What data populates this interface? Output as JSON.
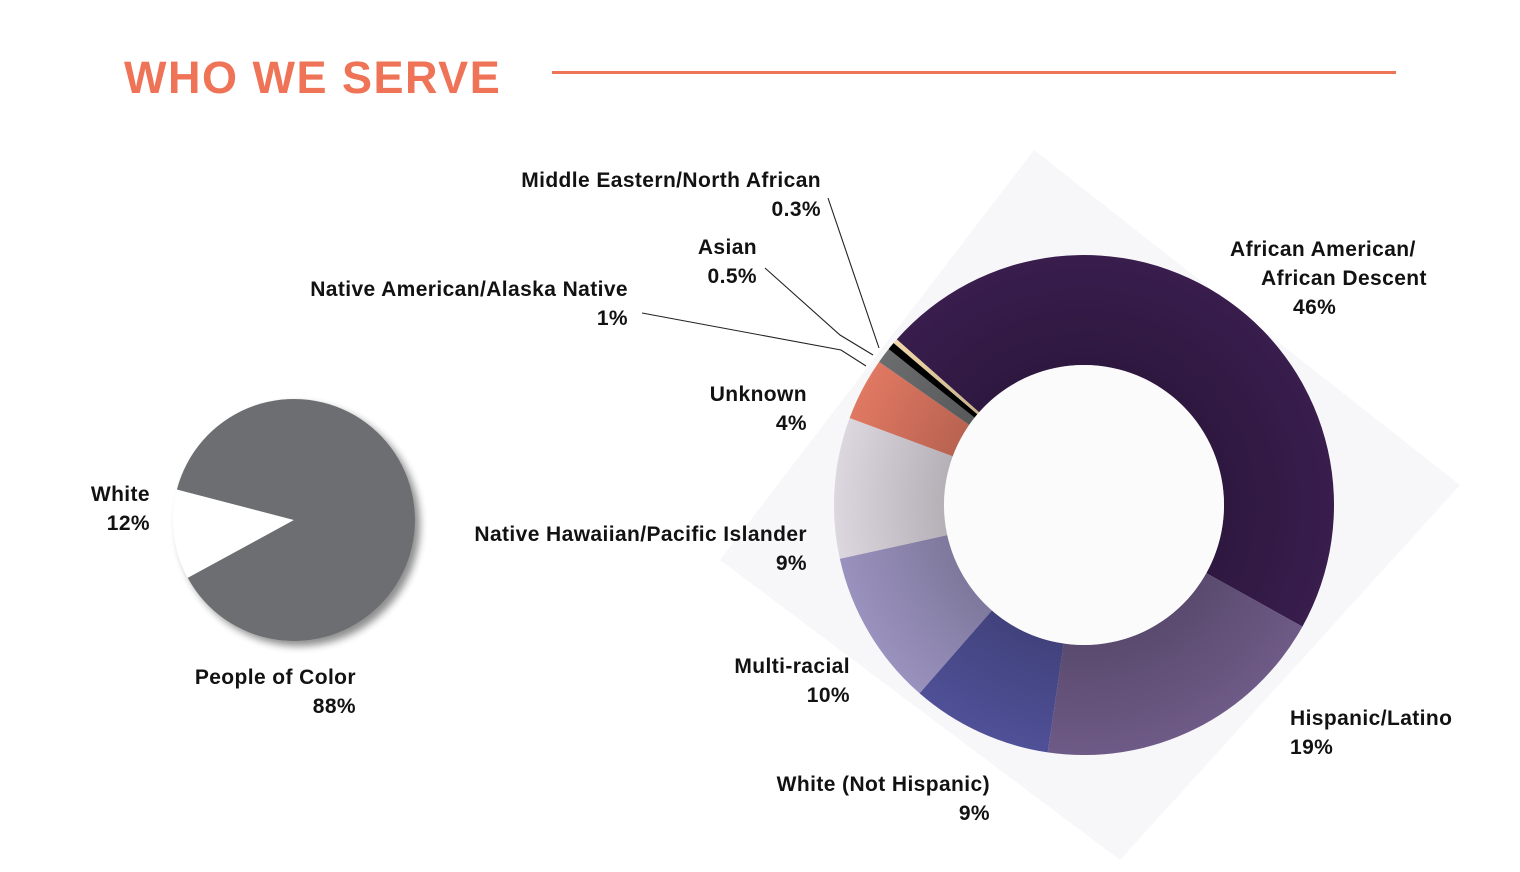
{
  "header": {
    "title": "WHO WE SERVE",
    "accent_color": "#ee7357"
  },
  "chart_data": [
    {
      "type": "pie",
      "title": "",
      "categories": [
        "White",
        "People of Color"
      ],
      "values": [
        12,
        88
      ],
      "units": "%",
      "colors": [
        "#ffffff",
        "#6d6e71"
      ],
      "labels": [
        {
          "name": "White",
          "value": "12%"
        },
        {
          "name": "People of Color",
          "value": "88%"
        }
      ]
    },
    {
      "type": "pie",
      "subtype": "donut",
      "title": "",
      "categories": [
        "African American/African Descent",
        "Hispanic/Latino",
        "White (Not Hispanic)",
        "Multi-racial",
        "Native Hawaiian/Pacific Islander",
        "Unknown",
        "Native American/Alaska Native",
        "Asian",
        "Middle Eastern/North African"
      ],
      "values": [
        46,
        19,
        9,
        10,
        9,
        4,
        1,
        0.5,
        0.3
      ],
      "units": "%",
      "colors": [
        "#381d4d",
        "#6e5a86",
        "#4f5097",
        "#9a92be",
        "#dcd6de",
        "#e07862",
        "#6b6c6e",
        "#000000",
        "#f2d8a7"
      ],
      "labels": [
        {
          "name_line1": "African American/",
          "name_line2": "African Descent",
          "value": "46%"
        },
        {
          "name": "Hispanic/Latino",
          "value": "19%"
        },
        {
          "name": "White (Not Hispanic)",
          "value": "9%"
        },
        {
          "name": "Multi-racial",
          "value": "10%"
        },
        {
          "name": "Native Hawaiian/Pacific Islander",
          "value": "9%"
        },
        {
          "name": "Unknown",
          "value": "4%"
        },
        {
          "name": "Native American/Alaska Native",
          "value": "1%"
        },
        {
          "name": "Asian",
          "value": "0.5%"
        },
        {
          "name": "Middle Eastern/North African",
          "value": "0.3%"
        }
      ]
    }
  ]
}
